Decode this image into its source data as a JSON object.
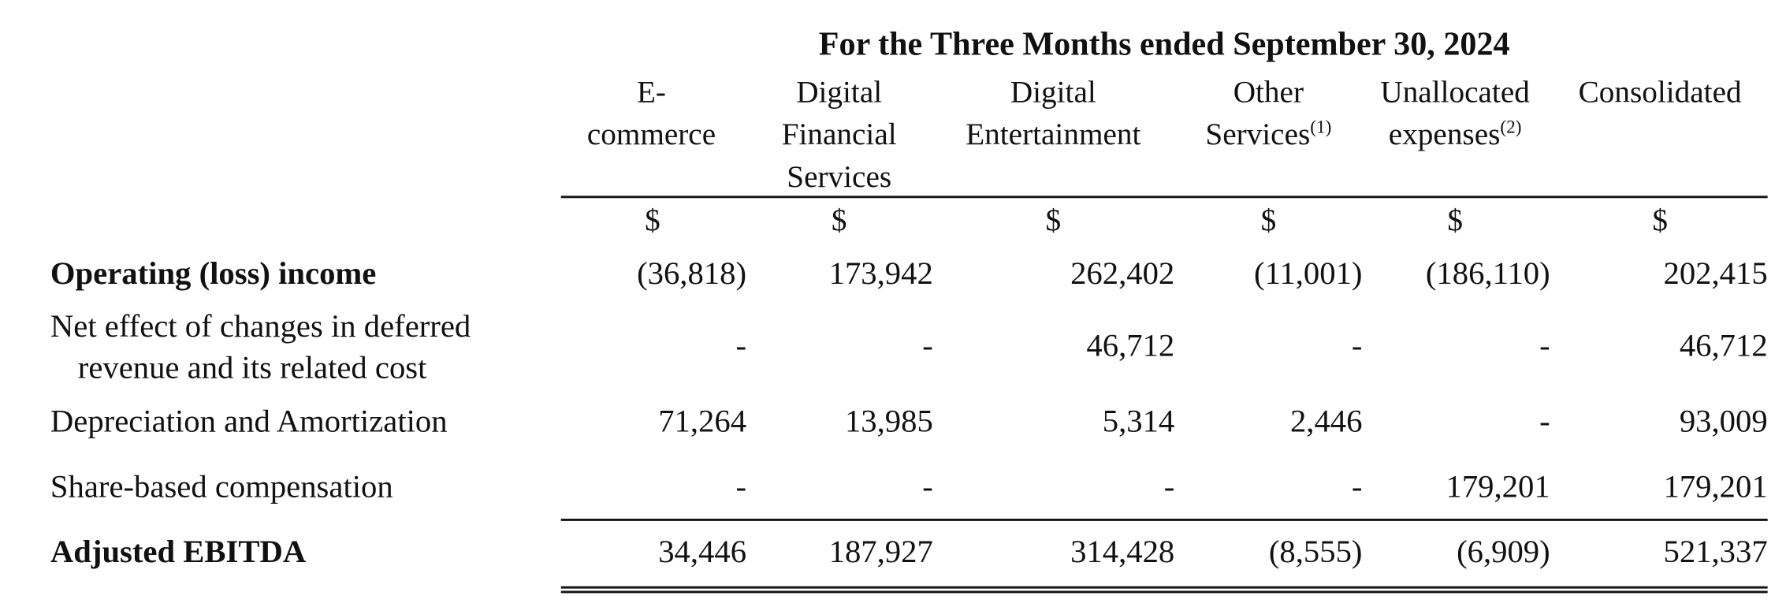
{
  "table": {
    "period_title": "For the Three Months ended September 30, 2024",
    "columns": [
      {
        "lines": [
          "E-",
          "commerce"
        ],
        "note": "",
        "currency": "$"
      },
      {
        "lines": [
          "Digital",
          "Financial",
          "Services"
        ],
        "note": "",
        "currency": "$"
      },
      {
        "lines": [
          "Digital",
          "Entertainment"
        ],
        "note": "",
        "currency": "$"
      },
      {
        "lines": [
          "Other",
          "Services"
        ],
        "note": "(1)",
        "currency": "$"
      },
      {
        "lines": [
          "Unallocated",
          "expenses"
        ],
        "note": "(2)",
        "currency": "$"
      },
      {
        "lines": [
          "Consolidated"
        ],
        "note": "",
        "currency": "$"
      }
    ],
    "rows": [
      {
        "label": "Operating (loss) income",
        "label_continued": "",
        "bold": true,
        "values": [
          "(36,818)",
          "173,942",
          "262,402",
          "(11,001)",
          "(186,110)",
          "202,415"
        ]
      },
      {
        "label": "Net effect of changes in deferred",
        "label_continued": "revenue and its related cost",
        "bold": false,
        "values": [
          "-",
          "-",
          "46,712",
          "-",
          "-",
          "46,712"
        ]
      },
      {
        "label": "Depreciation and Amortization",
        "label_continued": "",
        "bold": false,
        "values": [
          "71,264",
          "13,985",
          "5,314",
          "2,446",
          "-",
          "93,009"
        ]
      },
      {
        "label": "Share-based compensation",
        "label_continued": "",
        "bold": false,
        "values": [
          "-",
          "-",
          "-",
          "-",
          "179,201",
          "179,201"
        ]
      },
      {
        "label": "Adjusted EBITDA",
        "label_continued": "",
        "bold": true,
        "values": [
          "34,446",
          "187,927",
          "314,428",
          "(8,555)",
          "(6,909)",
          "521,337"
        ]
      }
    ]
  }
}
